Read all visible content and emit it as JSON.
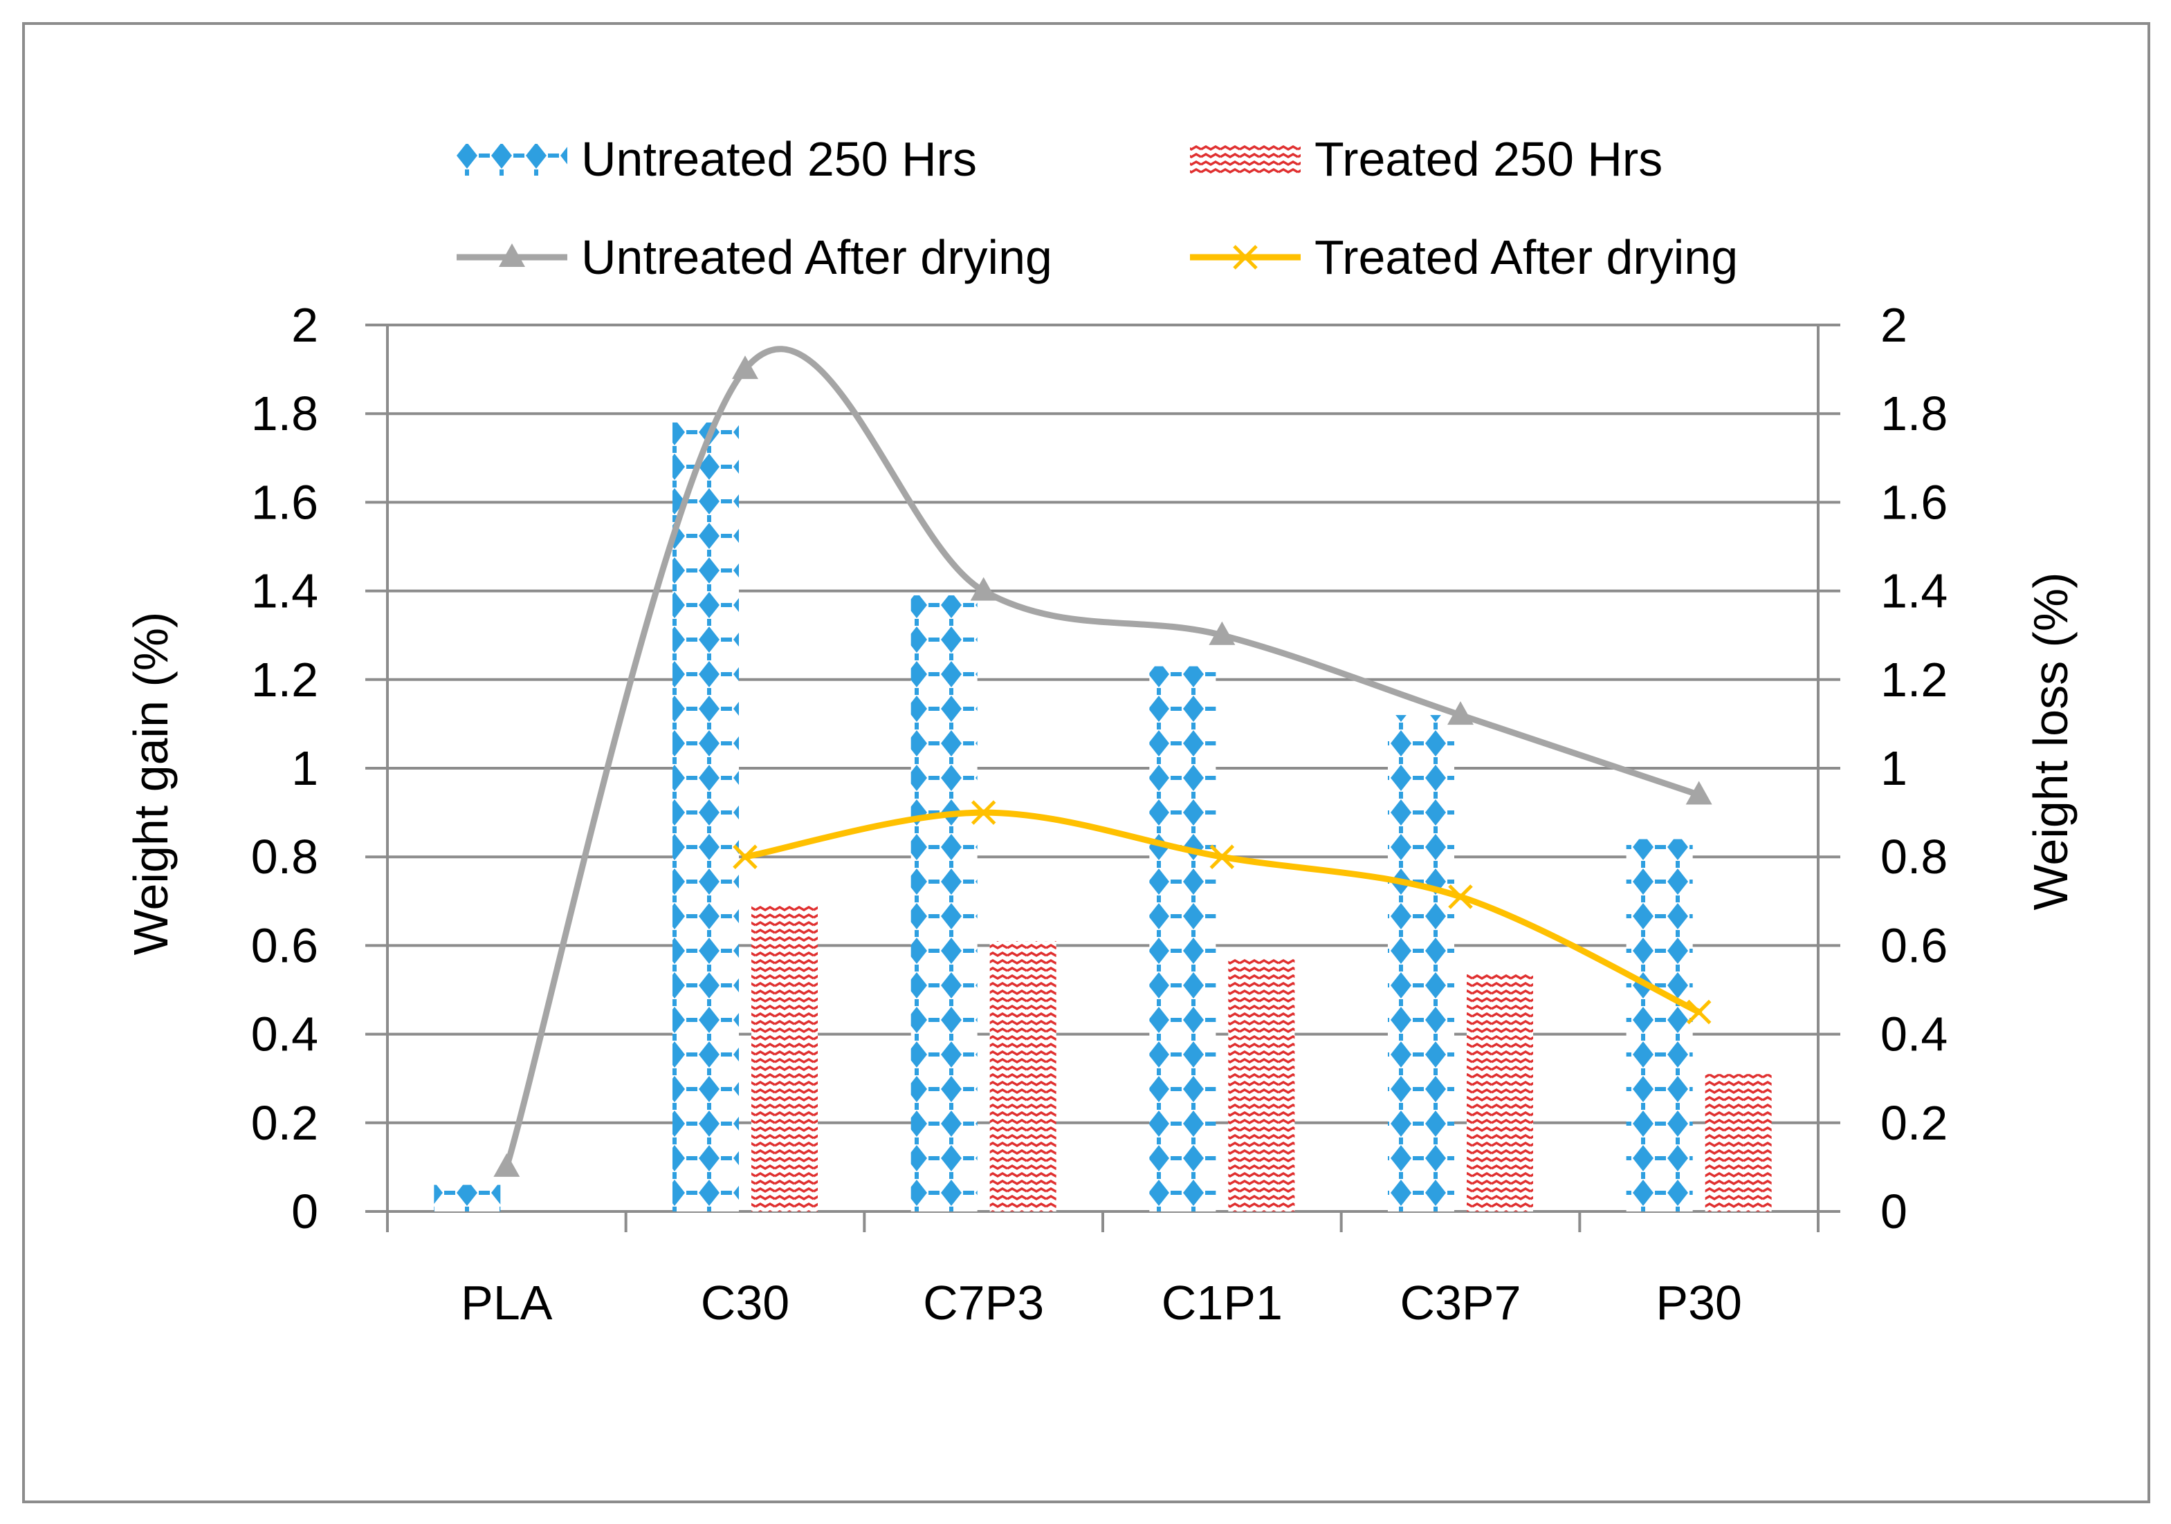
{
  "chart_data": {
    "type": "bar",
    "categories": [
      "PLA",
      "C30",
      "C7P3",
      "C1P1",
      "C3P7",
      "P30"
    ],
    "series": [
      {
        "name": "Untreated 250 Hrs",
        "kind": "bar",
        "axis": "left",
        "color": "#2E9FE0",
        "pattern": "diamond",
        "values": [
          0.06,
          1.78,
          1.39,
          1.23,
          1.12,
          0.84
        ]
      },
      {
        "name": "Treated 250 Hrs",
        "kind": "bar",
        "axis": "left",
        "color": "#E03030",
        "pattern": "wave",
        "values": [
          null,
          0.69,
          0.61,
          0.57,
          0.54,
          0.31
        ]
      },
      {
        "name": "Untreated After drying",
        "kind": "line",
        "axis": "right",
        "color": "#A5A5A5",
        "marker": "triangle",
        "smooth": true,
        "values": [
          0.1,
          1.9,
          1.4,
          1.3,
          1.12,
          0.94
        ]
      },
      {
        "name": "Treated After drying",
        "kind": "line",
        "axis": "right",
        "color": "#FFC000",
        "marker": "x",
        "smooth": true,
        "values": [
          null,
          0.8,
          0.9,
          0.8,
          0.71,
          0.45
        ]
      }
    ],
    "ylabel": "Weight gain (%)",
    "y2label": "Weight loss  (%)",
    "ylim": [
      0,
      2
    ],
    "y2lim": [
      0,
      2
    ],
    "yticks": [
      "0",
      "0.2",
      "0.4",
      "0.6",
      "0.8",
      "1",
      "1.2",
      "1.4",
      "1.6",
      "1.8",
      "2"
    ],
    "y2ticks": [
      "0",
      "0.2",
      "0.4",
      "0.6",
      "0.8",
      "1",
      "1.2",
      "1.4",
      "1.6",
      "1.8",
      "2"
    ],
    "grid": true,
    "legend_position": "top"
  }
}
